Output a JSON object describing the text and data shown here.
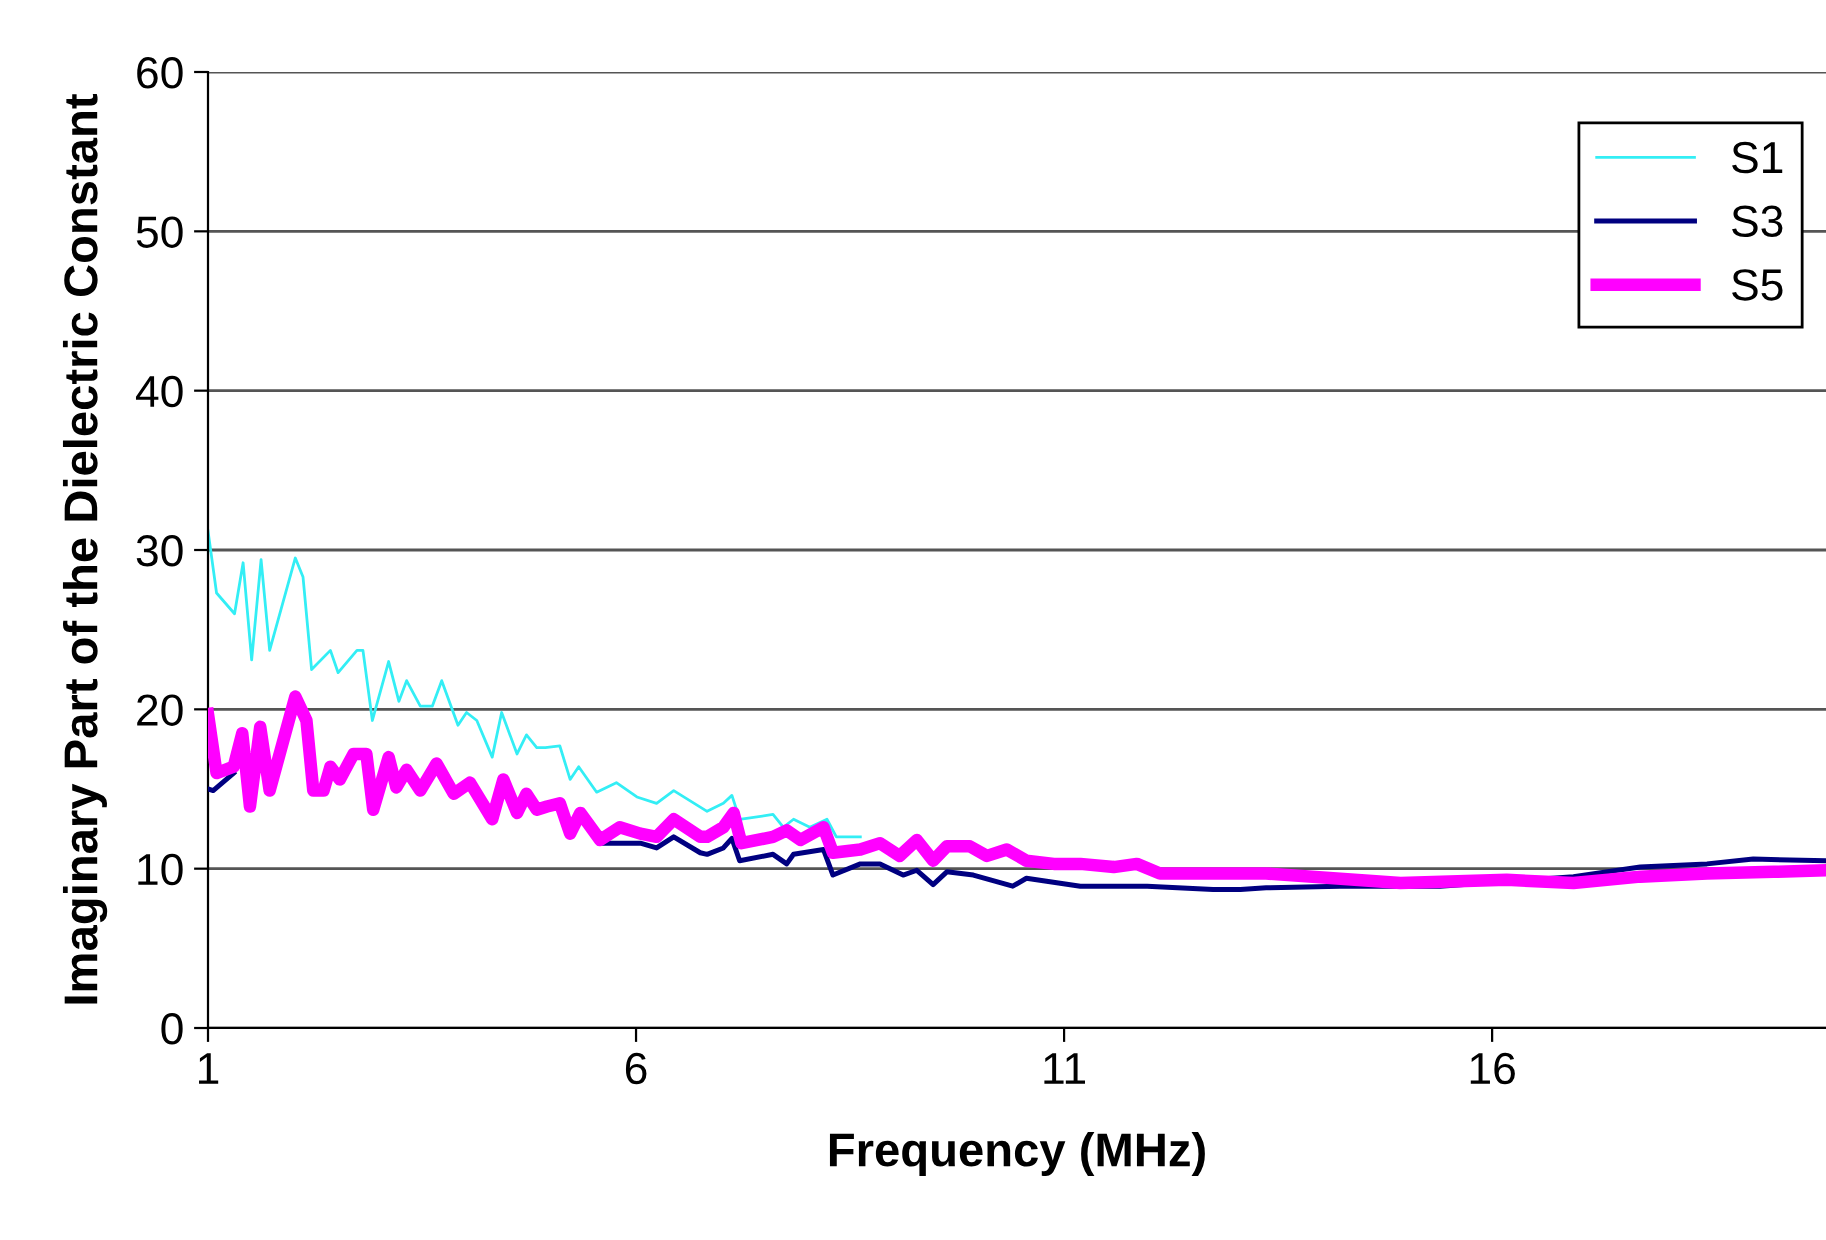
{
  "chart_data": {
    "type": "line",
    "xlabel": "Frequency (MHz)",
    "ylabel": "Imaginary Part of the Dielectric Constant",
    "xlim": [
      1,
      19.9
    ],
    "xticks": [
      1,
      6,
      11,
      16
    ],
    "ylim": [
      0,
      60
    ],
    "yticks": [
      0,
      10,
      20,
      30,
      40,
      50,
      60
    ],
    "grid": "y",
    "legend": "top right",
    "marker": "none",
    "line_style": "solid",
    "series": [
      {
        "name": "S1",
        "color": "#33eef5",
        "x": [
          1.0,
          1.1,
          1.31,
          1.41,
          1.51,
          1.62,
          1.72,
          2.02,
          2.11,
          2.21,
          2.43,
          2.52,
          2.74,
          2.81,
          2.92,
          3.11,
          3.23,
          3.32,
          3.48,
          3.62,
          3.73,
          3.92,
          4.02,
          4.14,
          4.32,
          4.43,
          4.61,
          4.72,
          4.84,
          4.94,
          5.11,
          5.23,
          5.33,
          5.54,
          5.77,
          6.01,
          6.24,
          6.44,
          6.83,
          7.02,
          7.12,
          7.21,
          7.6,
          7.72,
          7.84,
          8.03,
          8.23,
          8.34,
          8.62
        ],
        "values": [
          31.2,
          27.3,
          26.0,
          29.2,
          23.1,
          29.4,
          23.7,
          29.5,
          28.3,
          22.5,
          23.7,
          22.3,
          23.7,
          23.7,
          19.3,
          23.0,
          20.5,
          21.8,
          20.2,
          20.2,
          21.8,
          19.0,
          19.8,
          19.3,
          17.0,
          19.8,
          17.2,
          18.4,
          17.6,
          17.6,
          17.7,
          15.6,
          16.4,
          14.8,
          15.4,
          14.5,
          14.1,
          14.9,
          13.6,
          14.1,
          14.6,
          13.1,
          13.4,
          12.6,
          13.1,
          12.6,
          13.1,
          12.0,
          12.0
        ]
      },
      {
        "name": "S3",
        "color": "#000080",
        "x": [
          1.0,
          1.06,
          1.3,
          1.4,
          5.58,
          6.05,
          6.24,
          6.44,
          6.75,
          6.83,
          7.02,
          7.12,
          7.21,
          7.6,
          7.76,
          7.84,
          8.19,
          8.3,
          8.62,
          8.85,
          9.12,
          9.28,
          9.47,
          9.63,
          9.94,
          10.4,
          10.56,
          11.19,
          11.97,
          12.74,
          13.06,
          13.36,
          14.22,
          15.39,
          16.95,
          17.73,
          18.51,
          19.05,
          19.9
        ],
        "values": [
          15.0,
          14.9,
          16.0,
          null,
          11.6,
          11.6,
          11.3,
          12.0,
          11.0,
          10.9,
          11.3,
          11.9,
          10.5,
          10.9,
          10.3,
          10.9,
          11.2,
          9.6,
          10.3,
          10.3,
          9.6,
          9.9,
          9.0,
          9.8,
          9.6,
          8.9,
          9.4,
          8.9,
          8.9,
          8.7,
          8.7,
          8.8,
          8.9,
          8.9,
          9.5,
          10.1,
          10.3,
          10.6,
          10.5
        ]
      },
      {
        "name": "S5",
        "color": "#ff00ff",
        "x": [
          1.0,
          1.1,
          1.3,
          1.4,
          1.49,
          1.61,
          1.72,
          2.02,
          2.15,
          2.23,
          2.35,
          2.43,
          2.54,
          2.7,
          2.85,
          2.93,
          3.11,
          3.2,
          3.32,
          3.48,
          3.67,
          3.87,
          4.06,
          4.32,
          4.45,
          4.61,
          4.72,
          4.84,
          4.96,
          5.11,
          5.23,
          5.35,
          5.58,
          5.81,
          6.05,
          6.24,
          6.44,
          6.75,
          6.83,
          7.02,
          7.14,
          7.23,
          7.6,
          7.76,
          7.92,
          8.19,
          8.3,
          8.62,
          8.85,
          9.08,
          9.28,
          9.47,
          9.63,
          9.9,
          10.1,
          10.33,
          10.56,
          10.88,
          11.19,
          11.58,
          11.85,
          12.12,
          12.74,
          13.36,
          14.93,
          16.17,
          16.95,
          17.73,
          18.51,
          19.29,
          19.9
        ],
        "values": [
          19.7,
          16.0,
          16.4,
          18.5,
          13.9,
          18.9,
          14.9,
          20.8,
          19.3,
          14.9,
          14.9,
          16.4,
          15.6,
          17.2,
          17.2,
          13.7,
          17.0,
          15.1,
          16.2,
          14.9,
          16.6,
          14.7,
          15.4,
          13.1,
          15.6,
          13.5,
          14.7,
          13.7,
          13.9,
          14.1,
          12.2,
          13.5,
          11.8,
          12.6,
          12.2,
          12.0,
          13.1,
          12.0,
          12.0,
          12.6,
          13.5,
          11.6,
          12.0,
          12.4,
          11.8,
          12.6,
          11.0,
          11.2,
          11.6,
          10.8,
          11.8,
          10.5,
          11.4,
          11.4,
          10.8,
          11.2,
          10.5,
          10.3,
          10.3,
          10.1,
          10.3,
          9.7,
          9.7,
          9.7,
          9.1,
          9.3,
          9.1,
          9.5,
          9.7,
          9.8,
          9.9
        ]
      }
    ]
  }
}
